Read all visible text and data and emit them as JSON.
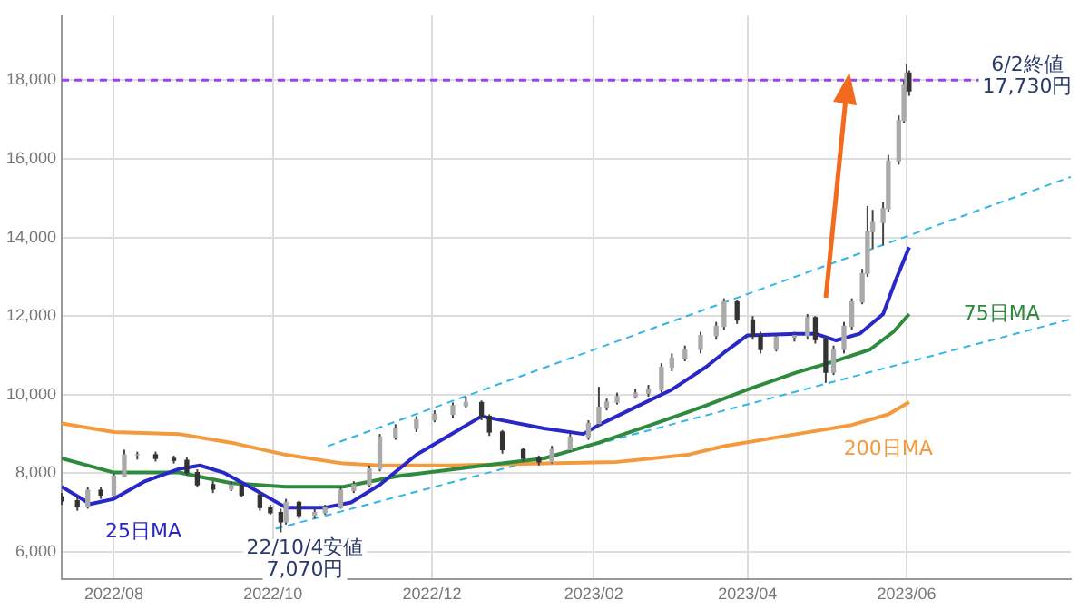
{
  "chart_data": {
    "type": "candlestick",
    "x": [
      "2022-07-12",
      "2022-07-18",
      "2022-07-22",
      "2022-07-27",
      "2022-08-01",
      "2022-08-05",
      "2022-08-10",
      "2022-08-17",
      "2022-08-24",
      "2022-08-29",
      "2022-09-02",
      "2022-09-08",
      "2022-09-15",
      "2022-09-19",
      "2022-09-26",
      "2022-09-30",
      "2022-10-04",
      "2022-10-06",
      "2022-10-11",
      "2022-10-17",
      "2022-10-21",
      "2022-10-27",
      "2022-11-01",
      "2022-11-07",
      "2022-11-11",
      "2022-11-17",
      "2022-11-25",
      "2022-12-02",
      "2022-12-09",
      "2022-12-14",
      "2022-12-20",
      "2022-12-23",
      "2022-12-28",
      "2023-01-05",
      "2023-01-11",
      "2023-01-16",
      "2023-01-23",
      "2023-01-30",
      "2023-02-03",
      "2023-02-06",
      "2023-02-10",
      "2023-02-17",
      "2023-02-22",
      "2023-02-27",
      "2023-03-03",
      "2023-03-08",
      "2023-03-14",
      "2023-03-20",
      "2023-03-23",
      "2023-03-28",
      "2023-04-03",
      "2023-04-06",
      "2023-04-12",
      "2023-04-19",
      "2023-04-24",
      "2023-04-27",
      "2023-05-01",
      "2023-05-04",
      "2023-05-08",
      "2023-05-11",
      "2023-05-15",
      "2023-05-17",
      "2023-05-19",
      "2023-05-23",
      "2023-05-25",
      "2023-05-29",
      "2023-05-31",
      "2023-06-01",
      "2023-06-02"
    ],
    "ohlc": [
      [
        7400,
        7500,
        7200,
        7300
      ],
      [
        7300,
        7400,
        7050,
        7150
      ],
      [
        7150,
        7650,
        7100,
        7570
      ],
      [
        7570,
        7650,
        7350,
        7450
      ],
      [
        7450,
        8000,
        7400,
        7930
      ],
      [
        7930,
        8600,
        7900,
        8470
      ],
      [
        8470,
        8550,
        8350,
        8470
      ],
      [
        8470,
        8550,
        8300,
        8380
      ],
      [
        8380,
        8450,
        8250,
        8330
      ],
      [
        8330,
        8400,
        7950,
        8020
      ],
      [
        8020,
        8100,
        7650,
        7710
      ],
      [
        7710,
        7800,
        7500,
        7600
      ],
      [
        7600,
        7800,
        7550,
        7700
      ],
      [
        7700,
        7750,
        7400,
        7450
      ],
      [
        7450,
        7500,
        7050,
        7130
      ],
      [
        7130,
        7200,
        6950,
        7000
      ],
      [
        7000,
        7100,
        6500,
        6770
      ],
      [
        6770,
        7350,
        6700,
        7260
      ],
      [
        7260,
        7300,
        6850,
        6930
      ],
      [
        6930,
        7100,
        6850,
        7000
      ],
      [
        7000,
        7200,
        6950,
        7130
      ],
      [
        7130,
        7650,
        7100,
        7570
      ],
      [
        7570,
        7800,
        7500,
        7710
      ],
      [
        7710,
        8200,
        7650,
        8110
      ],
      [
        8110,
        9000,
        8050,
        8920
      ],
      [
        8920,
        9250,
        8850,
        9140
      ],
      [
        9140,
        9450,
        9050,
        9360
      ],
      [
        9360,
        9600,
        9300,
        9500
      ],
      [
        9500,
        9800,
        9400,
        9720
      ],
      [
        9720,
        9950,
        9650,
        9800
      ],
      [
        9800,
        9850,
        9350,
        9450
      ],
      [
        9450,
        9500,
        8950,
        9050
      ],
      [
        9050,
        9100,
        8500,
        8600
      ],
      [
        8600,
        8650,
        8300,
        8380
      ],
      [
        8380,
        8450,
        8200,
        8290
      ],
      [
        8290,
        8700,
        8250,
        8600
      ],
      [
        8600,
        9000,
        8550,
        8920
      ],
      [
        8920,
        9350,
        8850,
        9270
      ],
      [
        9270,
        10200,
        9200,
        9680
      ],
      [
        9680,
        9900,
        9600,
        9810
      ],
      [
        9810,
        10050,
        9750,
        9950
      ],
      [
        9950,
        10150,
        9900,
        10040
      ],
      [
        10040,
        10250,
        9950,
        10130
      ],
      [
        10130,
        10800,
        10050,
        10700
      ],
      [
        10700,
        11050,
        10600,
        10930
      ],
      [
        10930,
        11250,
        10850,
        11150
      ],
      [
        11150,
        11600,
        11050,
        11500
      ],
      [
        11500,
        11850,
        11400,
        11740
      ],
      [
        11740,
        12450,
        11650,
        12360
      ],
      [
        12360,
        12400,
        11800,
        11900
      ],
      [
        11900,
        12000,
        11400,
        11500
      ],
      [
        11500,
        11600,
        11050,
        11150
      ],
      [
        11150,
        11550,
        11100,
        11460
      ],
      [
        11460,
        11600,
        11350,
        11500
      ],
      [
        11500,
        12050,
        11400,
        11960
      ],
      [
        11960,
        12000,
        11300,
        11400
      ],
      [
        11400,
        11450,
        10300,
        10570
      ],
      [
        10570,
        11250,
        10500,
        11150
      ],
      [
        11150,
        11850,
        11050,
        11740
      ],
      [
        11740,
        12450,
        11650,
        12360
      ],
      [
        12360,
        13200,
        12300,
        13080
      ],
      [
        13080,
        14800,
        13000,
        14150
      ],
      [
        14150,
        14700,
        13700,
        14380
      ],
      [
        14380,
        14900,
        13800,
        14730
      ],
      [
        14730,
        16100,
        14650,
        15940
      ],
      [
        15940,
        17100,
        15850,
        16970
      ],
      [
        16970,
        18000,
        16900,
        17870
      ],
      [
        17870,
        18400,
        17700,
        18180
      ],
      [
        18180,
        18250,
        17600,
        17730
      ]
    ],
    "color": "#444444",
    "colors": [
      "#333333",
      "#333333",
      "#aaaaaa",
      "#333333",
      "#aaaaaa",
      "#aaaaaa",
      "#aaaaaa",
      "#333333",
      "#333333",
      "#333333",
      "#333333",
      "#333333",
      "#aaaaaa",
      "#333333",
      "#333333",
      "#333333",
      "#333333",
      "#aaaaaa",
      "#333333",
      "#aaaaaa",
      "#aaaaaa",
      "#aaaaaa",
      "#aaaaaa",
      "#aaaaaa",
      "#aaaaaa",
      "#aaaaaa",
      "#aaaaaa",
      "#aaaaaa",
      "#aaaaaa",
      "#aaaaaa",
      "#333333",
      "#333333",
      "#333333",
      "#333333",
      "#333333",
      "#aaaaaa",
      "#aaaaaa",
      "#aaaaaa",
      "#aaaaaa",
      "#aaaaaa",
      "#aaaaaa",
      "#aaaaaa",
      "#aaaaaa",
      "#aaaaaa",
      "#aaaaaa",
      "#aaaaaa",
      "#aaaaaa",
      "#aaaaaa",
      "#aaaaaa",
      "#333333",
      "#333333",
      "#333333",
      "#aaaaaa",
      "#aaaaaa",
      "#aaaaaa",
      "#333333",
      "#333333",
      "#aaaaaa",
      "#aaaaaa",
      "#aaaaaa",
      "#aaaaaa",
      "#aaaaaa",
      "#aaaaaa",
      "#aaaaaa",
      "#aaaaaa",
      "#aaaaaa",
      "#aaaaaa",
      "#aaaaaa",
      "#333333"
    ],
    "series": [
      {
        "name": "25日MA",
        "type": "line",
        "color": "#2828c8",
        "x": [
          "2022-07-12",
          "2022-07-23",
          "2022-08-01",
          "2022-08-13",
          "2022-08-26",
          "2022-09-03",
          "2022-09-12",
          "2022-09-22",
          "2022-10-06",
          "2022-10-21",
          "2022-10-31",
          "2022-11-11",
          "2022-11-25",
          "2022-12-20",
          "2023-01-13",
          "2023-01-28",
          "2023-02-03",
          "2023-02-17",
          "2023-03-03",
          "2023-03-16",
          "2023-03-23",
          "2023-04-01",
          "2023-04-20",
          "2023-04-27",
          "2023-05-05",
          "2023-05-14",
          "2023-05-23",
          "2023-05-28",
          "2023-06-02"
        ],
        "values": [
          7660,
          7220,
          7350,
          7800,
          8110,
          8200,
          8020,
          7660,
          7130,
          7130,
          7260,
          7710,
          8470,
          9450,
          9140,
          9000,
          9230,
          9680,
          10130,
          10700,
          11070,
          11510,
          11550,
          11550,
          11380,
          11550,
          12050,
          12940,
          13750
        ]
      },
      {
        "name": "75日MA",
        "type": "line",
        "color": "#2e8b3e",
        "x": [
          "2022-07-12",
          "2022-08-01",
          "2022-08-26",
          "2022-09-15",
          "2022-10-06",
          "2022-10-28",
          "2022-11-18",
          "2022-12-16",
          "2023-01-13",
          "2023-02-03",
          "2023-02-23",
          "2023-03-16",
          "2023-04-01",
          "2023-04-20",
          "2023-05-04",
          "2023-05-18",
          "2023-05-27",
          "2023-06-02"
        ],
        "values": [
          8380,
          8020,
          8020,
          7750,
          7660,
          7660,
          7930,
          8160,
          8380,
          8780,
          9230,
          9720,
          10130,
          10570,
          10840,
          11150,
          11600,
          12050
        ]
      },
      {
        "name": "200日MA",
        "type": "line",
        "color": "#f39a3c",
        "x": [
          "2022-07-12",
          "2022-08-01",
          "2022-08-26",
          "2022-09-15",
          "2022-10-06",
          "2022-10-28",
          "2022-11-11",
          "2022-12-09",
          "2023-01-13",
          "2023-02-10",
          "2023-03-09",
          "2023-03-23",
          "2023-04-20",
          "2023-05-11",
          "2023-05-25",
          "2023-06-02"
        ],
        "values": [
          9270,
          9050,
          9000,
          8780,
          8470,
          8250,
          8200,
          8200,
          8250,
          8290,
          8470,
          8690,
          9000,
          9230,
          9500,
          9810
        ]
      },
      {
        "type": "line",
        "color": "#33b5e5",
        "line_style": "dashed",
        "x": [
          "2022-10-22",
          "2023-08-03"
        ],
        "values": [
          8690,
          15540
        ]
      },
      {
        "type": "line",
        "color": "#33b5e5",
        "line_style": "dashed",
        "x": [
          "2022-10-02",
          "2023-08-03"
        ],
        "values": [
          6590,
          11920
        ]
      }
    ],
    "ref_lines": [
      {
        "axis": "y",
        "value": 18000,
        "color": "#a040f0",
        "line_style": "dashed"
      }
    ],
    "annotations": [
      "6/2終値\n17,730円",
      "22/10/4安値\n7,070円"
    ],
    "xlim": [
      "2022-07-12",
      "2023-08-03"
    ],
    "ylim": [
      5300,
      19650
    ],
    "xticks": [
      {
        "value": "2022-08-01",
        "label": "2022/08"
      },
      {
        "value": "2022-10-01",
        "label": "2022/10"
      },
      {
        "value": "2022-12-01",
        "label": "2022/12"
      },
      {
        "value": "2023-02-01",
        "label": "2023/02"
      },
      {
        "value": "2023-04-01",
        "label": "2023/04"
      },
      {
        "value": "2023-06-01",
        "label": "2023/06"
      }
    ],
    "yticks": [
      {
        "value": 6000,
        "label": "6,000"
      },
      {
        "value": 8000,
        "label": "8,000"
      },
      {
        "value": 10000,
        "label": "10,000"
      },
      {
        "value": 12000,
        "label": "12,000"
      },
      {
        "value": 14000,
        "label": "14,000"
      },
      {
        "value": 16000,
        "label": "16,000"
      },
      {
        "value": 18000,
        "label": "18,000"
      }
    ],
    "grid": true,
    "legend": false,
    "marker": "none"
  }
}
